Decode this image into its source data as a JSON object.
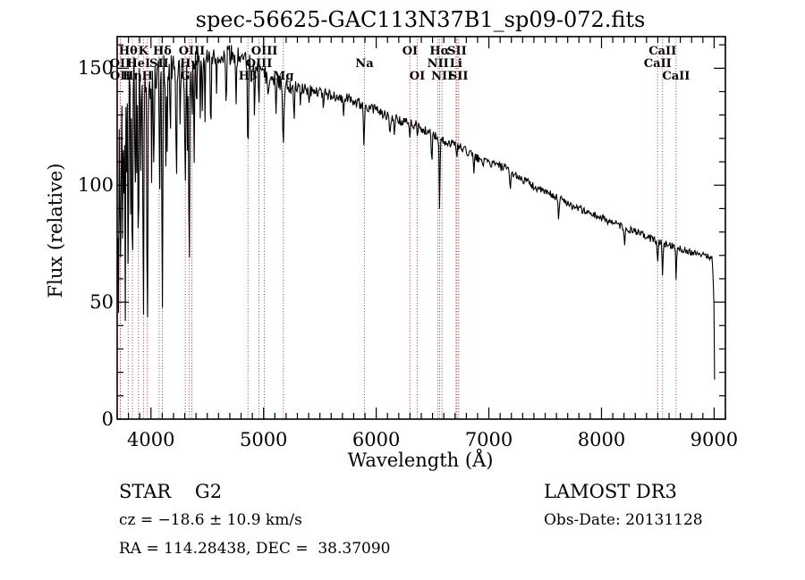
{
  "chart_data": {
    "type": "line",
    "title": "spec-56625-GAC113N37B1_sp09-072.fits",
    "xlabel": "Wavelength (Å)",
    "ylabel": "Flux (relative)",
    "xlim": [
      3700,
      9100
    ],
    "ylim": [
      0,
      163.5
    ],
    "x_major_ticks": [
      4000,
      5000,
      6000,
      7000,
      8000,
      9000
    ],
    "x_minor_step": 100,
    "y_major_ticks": [
      0,
      50,
      100,
      150
    ],
    "y_minor_step": 10,
    "grid": false,
    "spectrum_color": "#000000",
    "marker_color": "#9b3535",
    "spectrum": {
      "comment": "G2 star spectrum: continuum anchors [wavelength, flux], absorption lines [center, depth, sigma], noise amplitude anchors [wavelength, amp]",
      "sample_step": 6,
      "range": [
        3700,
        9008
      ],
      "continuum": [
        [
          3700,
          128
        ],
        [
          3740,
          142
        ],
        [
          3780,
          145
        ],
        [
          3850,
          146
        ],
        [
          3950,
          147
        ],
        [
          4000,
          144
        ],
        [
          4060,
          147
        ],
        [
          4150,
          150
        ],
        [
          4250,
          151
        ],
        [
          4350,
          153
        ],
        [
          4450,
          155
        ],
        [
          4550,
          156
        ],
        [
          4650,
          157
        ],
        [
          4750,
          155
        ],
        [
          4850,
          153
        ],
        [
          4950,
          149
        ],
        [
          5050,
          146
        ],
        [
          5150,
          144
        ],
        [
          5250,
          142
        ],
        [
          5350,
          141
        ],
        [
          5450,
          140
        ],
        [
          5560,
          139
        ],
        [
          5650,
          138
        ],
        [
          5750,
          137
        ],
        [
          5850,
          135
        ],
        [
          5950,
          133
        ],
        [
          6050,
          131
        ],
        [
          6150,
          129
        ],
        [
          6250,
          127
        ],
        [
          6350,
          126
        ],
        [
          6450,
          123
        ],
        [
          6550,
          120
        ],
        [
          6650,
          118
        ],
        [
          6750,
          116
        ],
        [
          6850,
          113
        ],
        [
          6950,
          110
        ],
        [
          7050,
          109
        ],
        [
          7150,
          107
        ],
        [
          7250,
          104
        ],
        [
          7350,
          101
        ],
        [
          7450,
          98
        ],
        [
          7550,
          96
        ],
        [
          7650,
          94
        ],
        [
          7750,
          91
        ],
        [
          7850,
          89
        ],
        [
          7950,
          87
        ],
        [
          8050,
          85
        ],
        [
          8150,
          83
        ],
        [
          8250,
          81
        ],
        [
          8350,
          79
        ],
        [
          8450,
          77
        ],
        [
          8550,
          75
        ],
        [
          8650,
          74
        ],
        [
          8750,
          72
        ],
        [
          8850,
          71
        ],
        [
          8950,
          70
        ],
        [
          8985,
          68
        ],
        [
          8998,
          50
        ],
        [
          9004,
          18
        ],
        [
          9008,
          3
        ]
      ],
      "absorption_lines": [
        [
          3703,
          110,
          2.5
        ],
        [
          3712,
          95,
          2.5
        ],
        [
          3727,
          70,
          3
        ],
        [
          3734,
          60,
          2.5
        ],
        [
          3750,
          75,
          3
        ],
        [
          3760,
          50,
          2.5
        ],
        [
          3771,
          100,
          3
        ],
        [
          3783,
          50,
          2.5
        ],
        [
          3798,
          85,
          3.5
        ],
        [
          3820,
          55,
          3
        ],
        [
          3835,
          105,
          3.5
        ],
        [
          3860,
          60,
          3
        ],
        [
          3875,
          40,
          2.5
        ],
        [
          3889,
          88,
          3.5
        ],
        [
          3910,
          40,
          3
        ],
        [
          3933,
          112,
          4
        ],
        [
          3968,
          118,
          4.5
        ],
        [
          4005,
          40,
          3
        ],
        [
          4026,
          48,
          3.5
        ],
        [
          4077,
          52,
          3.5
        ],
        [
          4101,
          108,
          4
        ],
        [
          4132,
          35,
          3
        ],
        [
          4144,
          42,
          3
        ],
        [
          4172,
          30,
          3
        ],
        [
          4226,
          48,
          3.5
        ],
        [
          4260,
          32,
          3
        ],
        [
          4304,
          52,
          5
        ],
        [
          4325,
          40,
          3
        ],
        [
          4340,
          95,
          4
        ],
        [
          4363,
          30,
          3
        ],
        [
          4383,
          50,
          3.5
        ],
        [
          4405,
          32,
          3
        ],
        [
          4437,
          25,
          3
        ],
        [
          4457,
          30,
          3
        ],
        [
          4481,
          25,
          3
        ],
        [
          4531,
          32,
          4
        ],
        [
          4583,
          22,
          3
        ],
        [
          4668,
          28,
          4
        ],
        [
          4755,
          18,
          3
        ],
        [
          4861,
          40,
          4.5
        ],
        [
          4920,
          22,
          3.5
        ],
        [
          4957,
          18,
          3
        ],
        [
          5041,
          15,
          3
        ],
        [
          5110,
          12,
          3
        ],
        [
          5175,
          24,
          6
        ],
        [
          5270,
          16,
          4.5
        ],
        [
          5328,
          10,
          3
        ],
        [
          5406,
          8,
          3
        ],
        [
          5530,
          8,
          3
        ],
        [
          5711,
          8,
          3
        ],
        [
          5890,
          18,
          4.5
        ],
        [
          6122,
          9,
          4
        ],
        [
          6162,
          7,
          3
        ],
        [
          6300,
          8,
          3
        ],
        [
          6366,
          6,
          3
        ],
        [
          6494,
          11,
          4
        ],
        [
          6563,
          30,
          3.5
        ],
        [
          6717,
          6,
          3
        ],
        [
          6867,
          8,
          4
        ],
        [
          7190,
          7,
          6
        ],
        [
          7620,
          8,
          6
        ],
        [
          8205,
          9,
          5
        ],
        [
          8498,
          10,
          4
        ],
        [
          8542,
          14,
          4
        ],
        [
          8662,
          13,
          4
        ]
      ],
      "noise_anchors": [
        [
          3700,
          11
        ],
        [
          3950,
          9
        ],
        [
          4150,
          7
        ],
        [
          4450,
          5
        ],
        [
          4800,
          4.5
        ],
        [
          5100,
          3.5
        ],
        [
          5500,
          2.6
        ],
        [
          6000,
          2.2
        ],
        [
          6500,
          2.0
        ],
        [
          7000,
          1.8
        ],
        [
          7600,
          1.7
        ],
        [
          8300,
          1.6
        ],
        [
          9008,
          1.4
        ]
      ]
    },
    "line_markers": [
      {
        "label": "OII",
        "wavelength": 3727,
        "row": 2
      },
      {
        "label": "OII",
        "wavelength": 3729,
        "row": 3
      },
      {
        "label": "Hθ",
        "wavelength": 3798,
        "row": 1
      },
      {
        "label": "Hη",
        "wavelength": 3835,
        "row": 3
      },
      {
        "label": "HeI",
        "wavelength": 3889,
        "row": 2
      },
      {
        "label": "K",
        "wavelength": 3933,
        "row": 1
      },
      {
        "label": "H",
        "wavelength": 3968,
        "row": 3
      },
      {
        "label": "SII",
        "wavelength": 4072,
        "row": 2
      },
      {
        "label": "Hδ",
        "wavelength": 4101,
        "row": 1
      },
      {
        "label": "G",
        "wavelength": 4305,
        "row": 3
      },
      {
        "label": "Hγ",
        "wavelength": 4340,
        "row": 2
      },
      {
        "label": "OIII",
        "wavelength": 4363,
        "row": 1
      },
      {
        "label": "Hβ",
        "wavelength": 4861,
        "row": 3
      },
      {
        "label": "OIII",
        "wavelength": 4959,
        "row": 2
      },
      {
        "label": "OIII",
        "wavelength": 5007,
        "row": 1
      },
      {
        "label": "Mg",
        "wavelength": 5175,
        "row": 3
      },
      {
        "label": "Na",
        "wavelength": 5896,
        "row": 2
      },
      {
        "label": "OI",
        "wavelength": 6300,
        "row": 1
      },
      {
        "label": "OI",
        "wavelength": 6364,
        "row": 3
      },
      {
        "label": "NII",
        "wavelength": 6548,
        "row": 2
      },
      {
        "label": "Hα",
        "wavelength": 6563,
        "row": 1
      },
      {
        "label": "NII",
        "wavelength": 6584,
        "row": 3
      },
      {
        "label": "Li",
        "wavelength": 6708,
        "row": 2
      },
      {
        "label": "SII",
        "wavelength": 6717,
        "row": 1
      },
      {
        "label": "SII",
        "wavelength": 6731,
        "row": 3
      },
      {
        "label": "CaII",
        "wavelength": 8498,
        "row": 2
      },
      {
        "label": "CaII",
        "wavelength": 8542,
        "row": 1
      },
      {
        "label": "CaII",
        "wavelength": 8662,
        "row": 3
      }
    ]
  },
  "footer": {
    "class_line": "STAR    G2",
    "cz_line": "cz = −18.6 ± 10.9 km/s",
    "radec_line": "RA = 114.28438, DEC =  38.37090",
    "survey": "LAMOST DR3",
    "obs_date": "Obs-Date: 20131128"
  }
}
